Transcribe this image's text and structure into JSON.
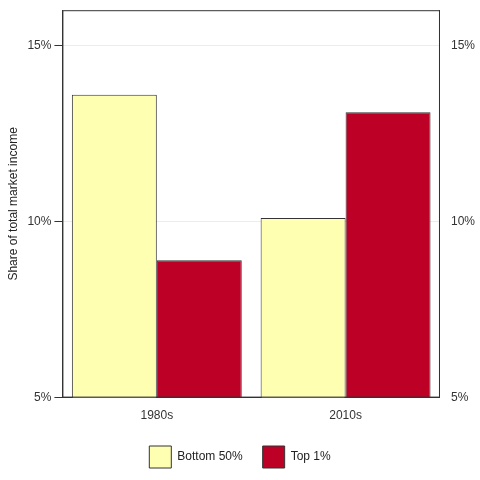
{
  "chart_data": {
    "type": "bar",
    "y_label": "Share of total market income",
    "categories": [
      "1980s",
      "2010s"
    ],
    "series": [
      {
        "name": "Bottom 50%",
        "color": "#ffffb2",
        "values": [
          13.6,
          10.1
        ]
      },
      {
        "name": "Top 1%",
        "color": "#bd0026",
        "values": [
          8.9,
          13.1
        ]
      }
    ],
    "ylim": [
      5,
      16
    ],
    "yticks": [
      {
        "value": 5,
        "label": "5%"
      },
      {
        "value": 10,
        "label": "10%"
      },
      {
        "value": 15,
        "label": "15%"
      }
    ],
    "grid": true,
    "legend": "bottom"
  }
}
